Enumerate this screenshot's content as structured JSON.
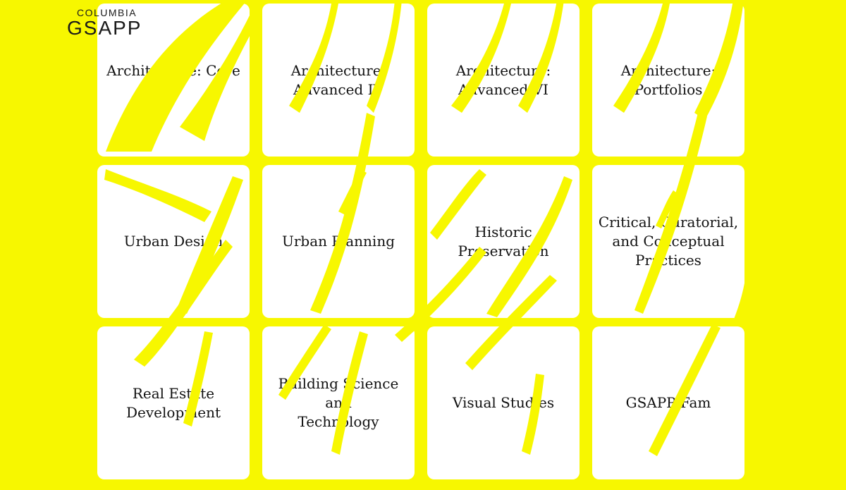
{
  "brand": {
    "line1": "COLUMBIA",
    "line2": "GSAPP"
  },
  "colors": {
    "background": "#F7F700",
    "card": "#ffffff",
    "text": "#111111"
  },
  "cards": [
    {
      "label": "Architecture: Core II"
    },
    {
      "label": "Architecture:\nAdvanced IV"
    },
    {
      "label": "Architecture:\nAdvanced VI"
    },
    {
      "label": "Architecture:\nPortfolios"
    },
    {
      "label": "Urban Design"
    },
    {
      "label": "Urban Planning"
    },
    {
      "label": "Historic Preservation"
    },
    {
      "label": "Critical, Curatorial,\nand Conceptual\nPractices"
    },
    {
      "label": "Real Estate\nDevelopment"
    },
    {
      "label": "Building Science and\nTechnology"
    },
    {
      "label": "Visual Studies"
    },
    {
      "label": "GSAPP Fam"
    }
  ]
}
